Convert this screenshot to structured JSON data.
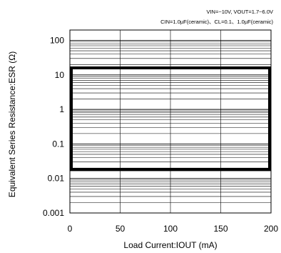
{
  "chart_data": {
    "type": "area",
    "title": "",
    "conditions": [
      "VIN=~10V, VOUT=1.7~6.0V",
      "CIN=1.0µF(ceramic)、CL=0.1、1.0µF(ceramic)"
    ],
    "xlabel": "Load Current:IOUT (mA)",
    "ylabel": "Equivalent Series Resistance:ESR (Ω)",
    "x_scale": "linear",
    "y_scale": "log",
    "xlim": [
      0,
      200
    ],
    "ylim": [
      0.001,
      200
    ],
    "x_ticks": [
      0,
      50,
      100,
      150,
      200
    ],
    "x_tick_labels": [
      "0",
      "50",
      "100",
      "150",
      "200"
    ],
    "y_ticks": [
      0.001,
      0.01,
      0.1,
      1,
      10,
      100
    ],
    "y_tick_labels": [
      "0.001",
      "0.01",
      "0.1",
      "1",
      "10",
      "100"
    ],
    "grid": true,
    "stable_region": {
      "x_range": [
        0,
        200
      ],
      "esr_range": [
        0.018,
        16
      ]
    }
  }
}
